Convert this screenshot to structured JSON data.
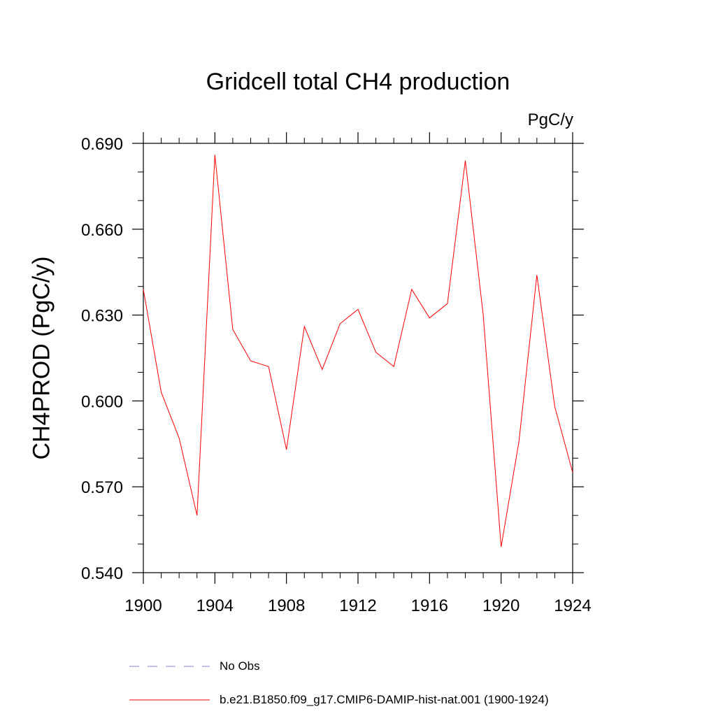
{
  "chart_data": {
    "type": "line",
    "title": "Gridcell total CH4 production",
    "units": "PgC/y",
    "ylabel": "CH4PROD  (PgC/y)",
    "xlabel": "",
    "xlim": [
      1900,
      1924
    ],
    "ylim": [
      0.54,
      0.69
    ],
    "x_ticks": [
      "1900",
      "1904",
      "1908",
      "1912",
      "1916",
      "1920",
      "1924"
    ],
    "y_ticks": [
      "0.540",
      "0.570",
      "0.600",
      "0.630",
      "0.660",
      "0.690"
    ],
    "grid": false,
    "series": [
      {
        "name": "b.e21.B1850.f09_g17.CMIP6-DAMIP-hist-nat.001 (1900-1924)",
        "color": "#ff0000",
        "style": "solid",
        "x": [
          1900,
          1901,
          1902,
          1903,
          1904,
          1905,
          1906,
          1907,
          1908,
          1909,
          1910,
          1911,
          1912,
          1913,
          1914,
          1915,
          1916,
          1917,
          1918,
          1919,
          1920,
          1921,
          1922,
          1923,
          1924
        ],
        "y": [
          0.639,
          0.603,
          0.587,
          0.56,
          0.686,
          0.625,
          0.614,
          0.612,
          0.583,
          0.626,
          0.611,
          0.627,
          0.632,
          0.617,
          0.612,
          0.639,
          0.629,
          0.634,
          0.684,
          0.63,
          0.549,
          0.586,
          0.644,
          0.598,
          0.575
        ]
      }
    ],
    "legend": [
      {
        "label": "No Obs",
        "color": "#8080c0",
        "style": "dashed"
      },
      {
        "label": "b.e21.B1850.f09_g17.CMIP6-DAMIP-hist-nat.001 (1900-1924)",
        "color": "#ff0000",
        "style": "solid"
      }
    ]
  }
}
